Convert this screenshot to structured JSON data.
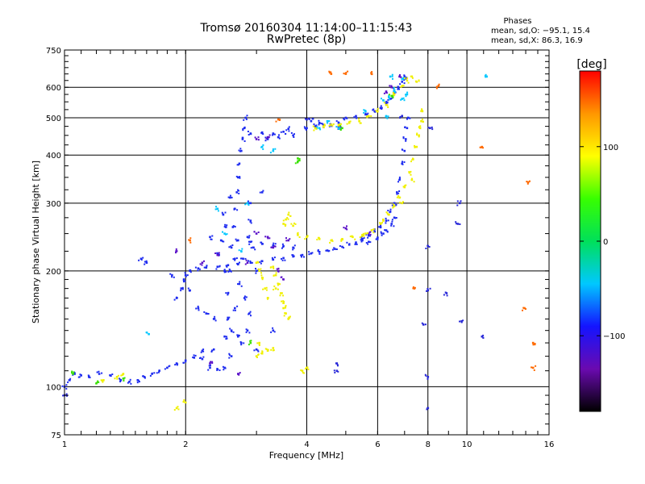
{
  "header": {
    "title": "Tromsø 20160304 11:14:00–11:15:43",
    "subtitle": "RwPretec (8p)",
    "phases_heading": "Phases",
    "phases_o": "mean, sd,O: −95.1, 15.4",
    "phases_x": "mean, sd,X:  86.3, 16.9"
  },
  "chart_data": {
    "type": "scatter",
    "xlabel": "Frequency [MHz]",
    "ylabel": "Stationary phase Virtual Height [km]",
    "x_scale": "log",
    "y_scale": "log",
    "xlim": [
      1,
      16
    ],
    "ylim": [
      75,
      750
    ],
    "x_ticks": [
      1,
      2,
      4,
      6,
      8,
      10,
      16
    ],
    "x_tick_labels": [
      "1",
      "2",
      "4",
      "6",
      "8",
      "10",
      "16"
    ],
    "y_ticks": [
      75,
      100,
      200,
      300,
      400,
      500,
      600,
      750
    ],
    "y_tick_labels": [
      "75",
      "100",
      "200",
      "300",
      "400",
      "500",
      "600",
      "750"
    ],
    "grid": true,
    "colorbar": {
      "label": "[deg]",
      "min": -180,
      "max": 180,
      "ticks": [
        -100,
        0,
        100
      ],
      "tick_labels": [
        "−100",
        "0",
        "100"
      ],
      "colormap": [
        "#000000",
        "#6a0ab0",
        "#1414ff",
        "#00c8ff",
        "#00e05a",
        "#38ff00",
        "#ffff00",
        "#ff9600",
        "#ff0000"
      ]
    },
    "series": [
      {
        "phase": -100,
        "color": "#1e2cf0",
        "points": [
          [
            1.0,
            100
          ],
          [
            1.03,
            104
          ],
          [
            1.06,
            108
          ],
          [
            1.1,
            107
          ],
          [
            1.15,
            106
          ],
          [
            1.22,
            108
          ],
          [
            1.3,
            107
          ],
          [
            1.38,
            104
          ],
          [
            1.45,
            103
          ],
          [
            1.52,
            104
          ],
          [
            1.58,
            106
          ],
          [
            1.65,
            108
          ],
          [
            1.72,
            110
          ],
          [
            1.8,
            112
          ],
          [
            1.9,
            115
          ],
          [
            2.0,
            117
          ],
          [
            2.1,
            119
          ],
          [
            2.2,
            118
          ],
          [
            2.3,
            112
          ],
          [
            2.4,
            111
          ],
          [
            2.5,
            112
          ],
          [
            2.6,
            120
          ],
          [
            2.75,
            130
          ],
          [
            1.9,
            170
          ],
          [
            1.95,
            180
          ],
          [
            1.98,
            190
          ],
          [
            2.0,
            195
          ],
          [
            2.05,
            200
          ],
          [
            2.15,
            203
          ],
          [
            2.25,
            204
          ],
          [
            2.4,
            205
          ],
          [
            2.55,
            207
          ],
          [
            2.7,
            208
          ],
          [
            2.9,
            210
          ],
          [
            3.1,
            212
          ],
          [
            3.3,
            214
          ],
          [
            3.5,
            216
          ],
          [
            3.7,
            218
          ],
          [
            3.9,
            220
          ],
          [
            4.1,
            222
          ],
          [
            4.3,
            224
          ],
          [
            4.5,
            226
          ],
          [
            4.7,
            228
          ],
          [
            4.9,
            231
          ],
          [
            5.1,
            234
          ],
          [
            5.3,
            237
          ],
          [
            5.5,
            242
          ],
          [
            5.7,
            247
          ],
          [
            5.9,
            253
          ],
          [
            6.1,
            260
          ],
          [
            6.3,
            270
          ],
          [
            6.45,
            285
          ],
          [
            6.6,
            300
          ],
          [
            6.7,
            320
          ],
          [
            6.8,
            345
          ],
          [
            6.9,
            380
          ],
          [
            7.0,
            410
          ],
          [
            7.05,
            440
          ],
          [
            7.1,
            470
          ],
          [
            7.15,
            500
          ],
          [
            2.55,
            150
          ],
          [
            2.55,
            175
          ],
          [
            2.58,
            200
          ],
          [
            2.6,
            230
          ],
          [
            2.62,
            260
          ],
          [
            2.65,
            290
          ],
          [
            2.68,
            320
          ],
          [
            2.7,
            350
          ],
          [
            2.72,
            380
          ],
          [
            2.75,
            410
          ],
          [
            2.77,
            440
          ],
          [
            2.8,
            470
          ],
          [
            2.82,
            500
          ],
          [
            2.65,
            160
          ],
          [
            2.72,
            185
          ],
          [
            2.78,
            215
          ],
          [
            2.85,
            245
          ],
          [
            2.9,
            270
          ],
          [
            2.6,
            140
          ],
          [
            2.7,
            135
          ],
          [
            2.85,
            140
          ],
          [
            2.88,
            155
          ],
          [
            2.5,
            200
          ],
          [
            2.45,
            240
          ],
          [
            2.48,
            280
          ],
          [
            2.42,
            220
          ],
          [
            2.52,
            260
          ],
          [
            2.9,
            300
          ],
          [
            2.95,
            230
          ],
          [
            2.58,
            310
          ],
          [
            2.9,
            455
          ],
          [
            3.1,
            458
          ],
          [
            3.3,
            455
          ],
          [
            3.5,
            460
          ],
          [
            3.7,
            450
          ],
          [
            3.2,
            440
          ],
          [
            3.4,
            445
          ],
          [
            3.6,
            468
          ],
          [
            4.0,
            470
          ],
          [
            4.2,
            475
          ],
          [
            4.4,
            478
          ],
          [
            4.6,
            480
          ],
          [
            4.1,
            490
          ],
          [
            4.3,
            485
          ],
          [
            4.8,
            485
          ],
          [
            5.0,
            500
          ],
          [
            5.3,
            505
          ],
          [
            5.6,
            510
          ],
          [
            5.9,
            520
          ],
          [
            6.1,
            530
          ],
          [
            6.3,
            545
          ],
          [
            6.45,
            560
          ],
          [
            6.6,
            580
          ],
          [
            6.75,
            600
          ],
          [
            6.9,
            620
          ],
          [
            7.0,
            640
          ],
          [
            2.7,
            240
          ],
          [
            2.9,
            238
          ],
          [
            3.1,
            235
          ],
          [
            3.3,
            233
          ],
          [
            3.5,
            232
          ],
          [
            3.7,
            230
          ],
          [
            1.55,
            215
          ],
          [
            1.6,
            210
          ],
          [
            1.85,
            195
          ],
          [
            2.05,
            178
          ],
          [
            2.15,
            160
          ],
          [
            2.25,
            155
          ],
          [
            2.35,
            150
          ],
          [
            3.3,
            140
          ],
          [
            5.5,
            240
          ],
          [
            5.7,
            238
          ],
          [
            6.0,
            244
          ],
          [
            6.3,
            255
          ],
          [
            6.5,
            265
          ],
          [
            6.6,
            275
          ],
          [
            6.2,
            250
          ],
          [
            2.3,
            245
          ],
          [
            2.8,
            170
          ],
          [
            2.65,
            215
          ],
          [
            2.5,
            135
          ],
          [
            2.35,
            125
          ],
          [
            2.2,
            124
          ],
          [
            3.0,
            125
          ],
          [
            3.1,
            320
          ],
          [
            3.0,
            200
          ]
        ]
      },
      {
        "phase": -140,
        "color": "#5a10c8",
        "points": [
          [
            3.2,
            245
          ],
          [
            3.6,
            240
          ],
          [
            3.0,
            440
          ],
          [
            3.2,
            445
          ],
          [
            4.8,
            472
          ],
          [
            6.5,
            600
          ],
          [
            6.8,
            640
          ],
          [
            5.0,
            258
          ],
          [
            5.7,
            250
          ],
          [
            1.9,
            225
          ],
          [
            2.2,
            210
          ],
          [
            3.4,
            200
          ],
          [
            3.3,
            230
          ],
          [
            3.0,
            250
          ],
          [
            2.85,
            210
          ],
          [
            6.3,
            585
          ],
          [
            2.3,
            115
          ],
          [
            2.7,
            108
          ],
          [
            3.5,
            190
          ],
          [
            2.4,
            220
          ]
        ]
      },
      {
        "phase": -20,
        "color": "#00c8ff",
        "points": [
          [
            6.2,
            555
          ],
          [
            6.4,
            565
          ],
          [
            6.6,
            590
          ],
          [
            6.3,
            505
          ],
          [
            6.9,
            630
          ],
          [
            2.85,
            300
          ],
          [
            3.1,
            420
          ],
          [
            2.5,
            250
          ],
          [
            4.8,
            470
          ],
          [
            4.5,
            490
          ],
          [
            2.4,
            290
          ],
          [
            4.3,
            470
          ],
          [
            6.9,
            560
          ],
          [
            7.1,
            575
          ],
          [
            5.6,
            520
          ],
          [
            6.45,
            640
          ],
          [
            11.2,
            640
          ],
          [
            2.75,
            225
          ],
          [
            3.3,
            410
          ],
          [
            1.62,
            137
          ]
        ]
      },
      {
        "phase": 100,
        "color": "#f0f000",
        "points": [
          [
            3.5,
            265
          ],
          [
            3.55,
            272
          ],
          [
            3.6,
            280
          ],
          [
            3.7,
            262
          ],
          [
            3.8,
            248
          ],
          [
            4.0,
            245
          ],
          [
            4.3,
            242
          ],
          [
            4.6,
            240
          ],
          [
            4.9,
            242
          ],
          [
            5.2,
            245
          ],
          [
            5.5,
            248
          ],
          [
            5.8,
            255
          ],
          [
            6.1,
            265
          ],
          [
            6.4,
            280
          ],
          [
            6.6,
            295
          ],
          [
            6.8,
            310
          ],
          [
            7.0,
            330
          ],
          [
            7.2,
            360
          ],
          [
            7.35,
            390
          ],
          [
            7.5,
            420
          ],
          [
            7.6,
            450
          ],
          [
            7.7,
            490
          ],
          [
            7.75,
            520
          ],
          [
            7.65,
            470
          ],
          [
            7.3,
            345
          ],
          [
            6.9,
            300
          ],
          [
            6.2,
            270
          ],
          [
            5.6,
            250
          ],
          [
            3.0,
            120
          ],
          [
            3.1,
            122
          ],
          [
            3.2,
            124
          ],
          [
            3.3,
            126
          ],
          [
            3.05,
            130
          ],
          [
            3.3,
            205
          ],
          [
            3.35,
            195
          ],
          [
            3.4,
            185
          ],
          [
            3.45,
            175
          ],
          [
            3.5,
            165
          ],
          [
            3.55,
            155
          ],
          [
            3.6,
            150
          ],
          [
            3.35,
            180
          ],
          [
            3.5,
            160
          ],
          [
            3.0,
            210
          ],
          [
            3.05,
            200
          ],
          [
            3.1,
            192
          ],
          [
            3.15,
            180
          ],
          [
            3.2,
            170
          ],
          [
            4.2,
            470
          ],
          [
            4.4,
            475
          ],
          [
            4.6,
            480
          ],
          [
            4.8,
            478
          ],
          [
            5.1,
            485
          ],
          [
            5.4,
            490
          ],
          [
            5.7,
            505
          ],
          [
            6.0,
            520
          ],
          [
            6.3,
            540
          ],
          [
            6.6,
            575
          ],
          [
            6.9,
            605
          ],
          [
            7.1,
            625
          ],
          [
            7.3,
            640
          ],
          [
            7.5,
            620
          ],
          [
            3.9,
            110
          ],
          [
            4.0,
            112
          ],
          [
            1.35,
            106
          ],
          [
            1.4,
            108
          ],
          [
            1.9,
            88
          ],
          [
            2.0,
            91
          ],
          [
            1.25,
            104
          ]
        ]
      },
      {
        "phase": 40,
        "color": "#38e000",
        "points": [
          [
            3.8,
            392
          ],
          [
            3.8,
            385
          ],
          [
            1.05,
            108
          ],
          [
            1.4,
            105
          ],
          [
            1.2,
            102
          ],
          [
            4.9,
            470
          ],
          [
            2.9,
            130
          ],
          [
            6.5,
            570
          ]
        ]
      },
      {
        "phase": 150,
        "color": "#ff6a00",
        "points": [
          [
            5.0,
            650
          ],
          [
            10.9,
            420
          ],
          [
            14.2,
            340
          ],
          [
            14.6,
            130
          ],
          [
            14.6,
            112
          ],
          [
            13.9,
            160
          ],
          [
            8.5,
            605
          ],
          [
            5.8,
            650
          ],
          [
            2.05,
            240
          ],
          [
            7.4,
            180
          ],
          [
            3.4,
            495
          ],
          [
            4.6,
            650
          ]
        ]
      },
      {
        "phase": -120,
        "color": "#2828d8",
        "points": [
          [
            8.0,
            232
          ],
          [
            8.0,
            178
          ],
          [
            8.0,
            106
          ],
          [
            8.0,
            88
          ],
          [
            9.7,
            148
          ],
          [
            10.9,
            135
          ],
          [
            4.75,
            115
          ],
          [
            4.75,
            110
          ],
          [
            7.8,
            145
          ],
          [
            8.1,
            470
          ],
          [
            9.5,
            265
          ],
          [
            9.6,
            300
          ],
          [
            1.0,
            95
          ],
          [
            4.0,
            495
          ],
          [
            6.9,
            505
          ],
          [
            8.9,
            175
          ]
        ]
      }
    ]
  }
}
